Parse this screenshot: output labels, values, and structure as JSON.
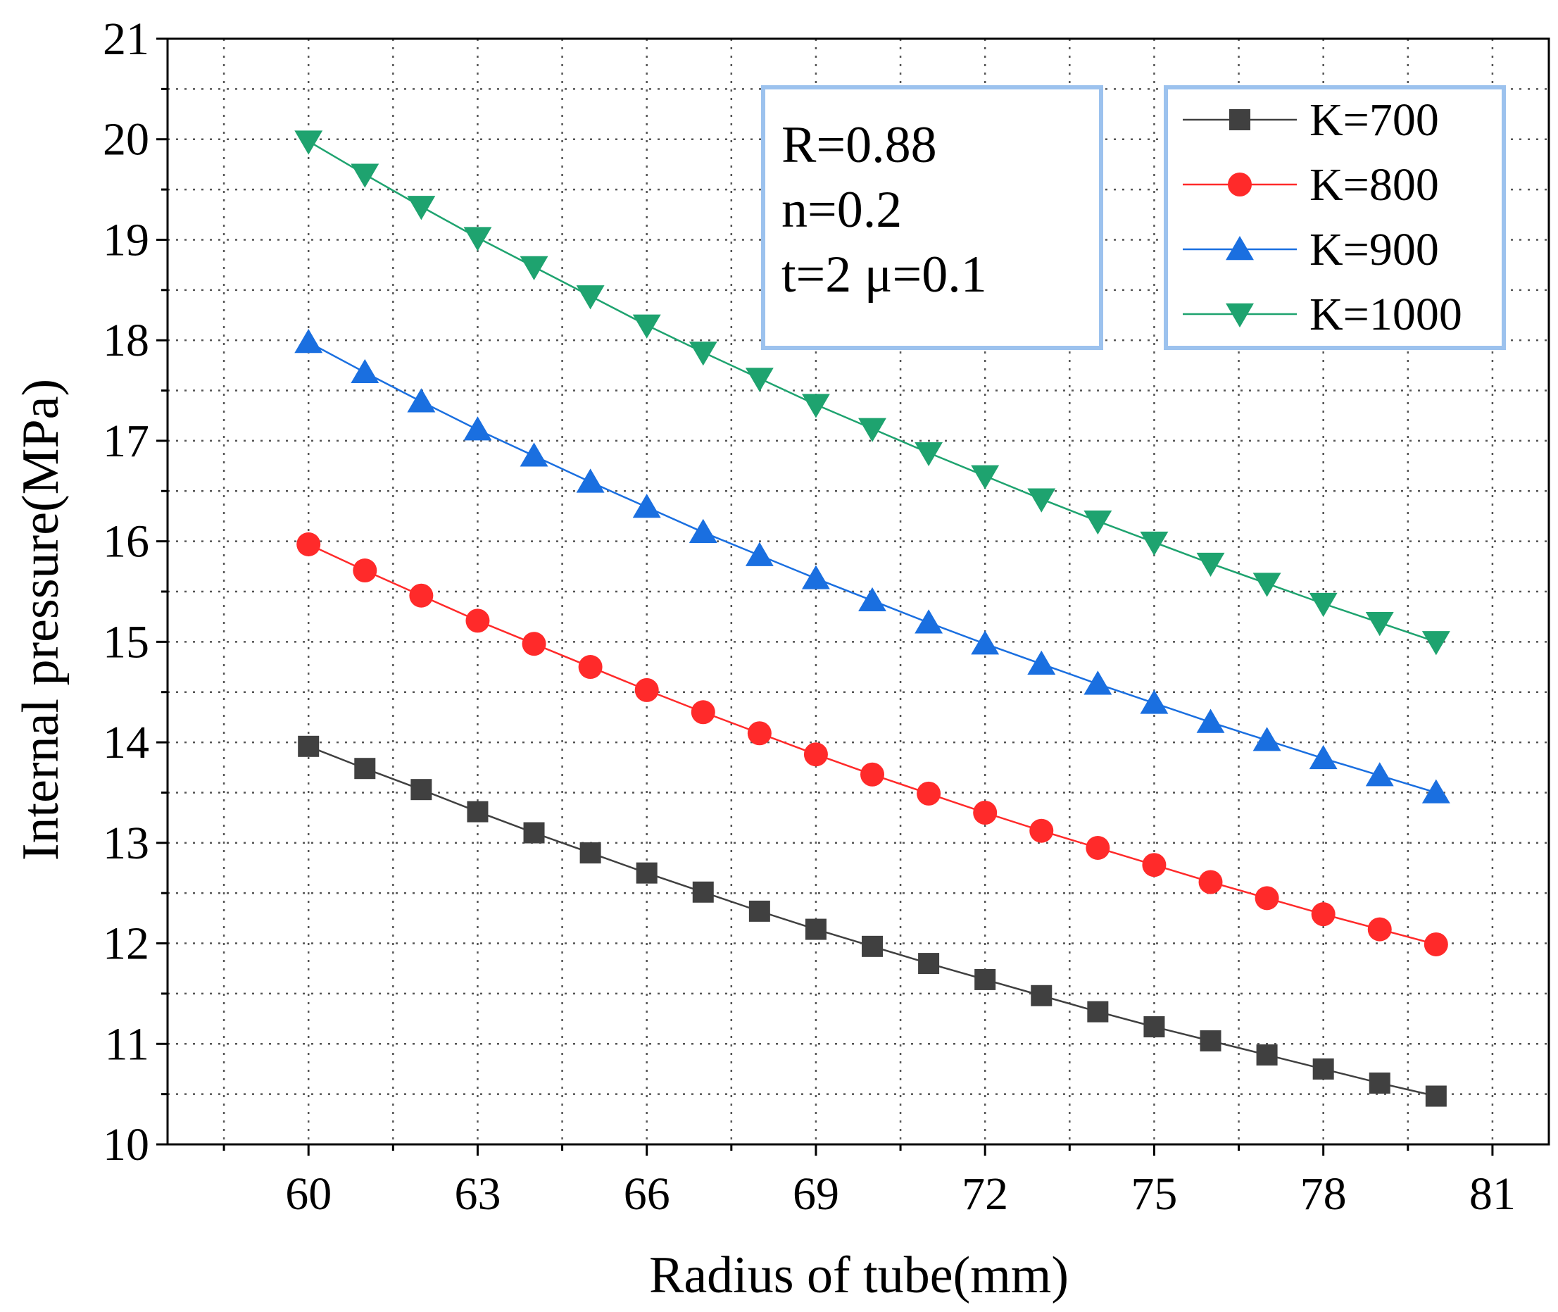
{
  "chart_data": {
    "type": "line",
    "title": "",
    "xlabel": "Radius of tube(mm)",
    "ylabel": "Internal pressure(MPa)",
    "xlim": [
      57.5,
      82
    ],
    "ylim": [
      10,
      21
    ],
    "xticks": [
      60,
      63,
      66,
      69,
      72,
      75,
      78,
      81
    ],
    "yticks": [
      10,
      11,
      12,
      13,
      14,
      15,
      16,
      17,
      18,
      19,
      20,
      21
    ],
    "x_minor_ticks": [
      58.5,
      61.5,
      64.5,
      67.5,
      70.5,
      73.5,
      76.5,
      79.5
    ],
    "y_minor_ticks": [
      10.5,
      11.5,
      12.5,
      13.5,
      14.5,
      15.5,
      16.5,
      17.5,
      18.5,
      19.5,
      20.5
    ],
    "grid": true,
    "legend_position": "top-right",
    "annotation": [
      "R=0.88",
      "n=0.2",
      "t=2  μ=0.1"
    ],
    "x": [
      60,
      61,
      62,
      63,
      64,
      65,
      66,
      67,
      68,
      69,
      70,
      71,
      72,
      73,
      74,
      75,
      76,
      77,
      78,
      79,
      80
    ],
    "series": [
      {
        "name": "K=700",
        "marker": "square",
        "color": "#404040",
        "values": [
          13.96,
          13.74,
          13.53,
          13.31,
          13.1,
          12.9,
          12.7,
          12.51,
          12.32,
          12.14,
          11.97,
          11.8,
          11.64,
          11.48,
          11.32,
          11.17,
          11.03,
          10.89,
          10.75,
          10.61,
          10.48
        ]
      },
      {
        "name": "K=800",
        "marker": "circle",
        "color": "#ff2a2a",
        "values": [
          15.97,
          15.71,
          15.46,
          15.21,
          14.98,
          14.75,
          14.52,
          14.3,
          14.09,
          13.88,
          13.68,
          13.49,
          13.3,
          13.12,
          12.95,
          12.78,
          12.61,
          12.45,
          12.29,
          12.14,
          11.99
        ]
      },
      {
        "name": "K=900",
        "marker": "triangle-up",
        "color": "#1a6fe0",
        "values": [
          17.98,
          17.68,
          17.39,
          17.11,
          16.85,
          16.59,
          16.34,
          16.09,
          15.86,
          15.63,
          15.41,
          15.19,
          14.98,
          14.78,
          14.58,
          14.39,
          14.2,
          14.02,
          13.84,
          13.67,
          13.5
        ]
      },
      {
        "name": "K=1000",
        "marker": "triangle-down",
        "color": "#1ea36f",
        "values": [
          19.98,
          19.65,
          19.33,
          19.02,
          18.73,
          18.44,
          18.15,
          17.88,
          17.62,
          17.36,
          17.12,
          16.88,
          16.65,
          16.42,
          16.2,
          15.99,
          15.78,
          15.58,
          15.38,
          15.19,
          15.0
        ]
      }
    ]
  }
}
